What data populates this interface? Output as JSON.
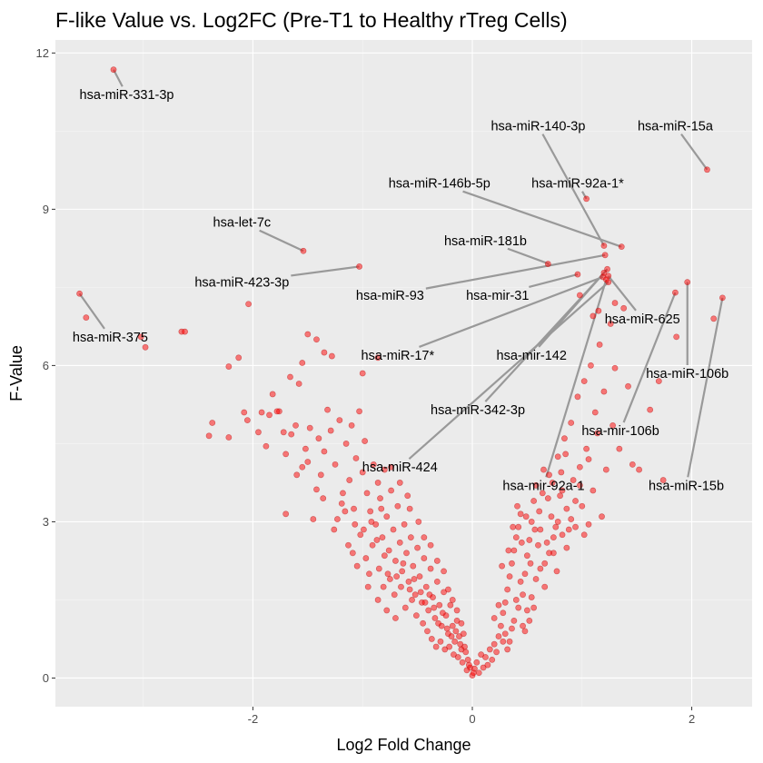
{
  "chart_data": {
    "type": "scatter",
    "title": "F-like Value vs. Log2FC (Pre-T1 to Healthy rTreg Cells)",
    "xlabel": "Log2 Fold Change",
    "ylabel": "F-Value",
    "xlim": [
      -3.8,
      2.55
    ],
    "ylim": [
      -0.55,
      12.25
    ],
    "x_ticks": [
      -2,
      0,
      2
    ],
    "y_ticks": [
      0,
      3,
      6,
      9,
      12
    ],
    "grid": true,
    "point_color": "#ff0000",
    "label_line_color": "#999999",
    "panel_color": "#ebebeb",
    "labeled_points": [
      {
        "label": "hsa-miR-331-3p",
        "x": -3.27,
        "y": 11.68,
        "label_x": -3.15,
        "label_y": 11.2
      },
      {
        "label": "hsa-miR-140-3p",
        "x": 1.2,
        "y": 8.3,
        "label_x": 0.6,
        "label_y": 10.6
      },
      {
        "label": "hsa-miR-15a",
        "x": 2.14,
        "y": 9.76,
        "label_x": 1.85,
        "label_y": 10.6
      },
      {
        "label": "hsa-miR-146b-5p",
        "x": 1.36,
        "y": 8.28,
        "label_x": -0.3,
        "label_y": 9.5
      },
      {
        "label": "hsa-miR-92a-1*",
        "x": 1.04,
        "y": 9.2,
        "label_x": 0.96,
        "label_y": 9.5
      },
      {
        "label": "hsa-let-7c",
        "x": -1.54,
        "y": 8.2,
        "label_x": -2.1,
        "label_y": 8.75
      },
      {
        "label": "hsa-miR-181b",
        "x": 0.7,
        "y": 7.95,
        "label_x": 0.12,
        "label_y": 8.4
      },
      {
        "label": "hsa-miR-423-3p",
        "x": -1.03,
        "y": 7.9,
        "label_x": -2.1,
        "label_y": 7.6
      },
      {
        "label": "hsa-miR-375",
        "x": -3.58,
        "y": 7.38,
        "label_x": -3.3,
        "label_y": 6.55
      },
      {
        "label": "hsa-miR-93",
        "x": 1.21,
        "y": 8.12,
        "label_x": -0.75,
        "label_y": 7.35
      },
      {
        "label": "hsa-mir-31",
        "x": 0.96,
        "y": 7.75,
        "label_x": 0.23,
        "label_y": 7.35
      },
      {
        "label": "hsa-miR-625",
        "x": 1.24,
        "y": 7.72,
        "label_x": 1.55,
        "label_y": 6.9
      },
      {
        "label": "hsa-miR-17*",
        "x": 1.19,
        "y": 7.7,
        "label_x": -0.68,
        "label_y": 6.2
      },
      {
        "label": "hsa-mir-142",
        "x": 1.23,
        "y": 7.85,
        "label_x": 0.54,
        "label_y": 6.2
      },
      {
        "label": "hsa-miR-106b",
        "x": 1.96,
        "y": 7.6,
        "label_x": 1.96,
        "label_y": 5.85
      },
      {
        "label": "hsa-miR-342-3p",
        "x": 1.2,
        "y": 7.78,
        "label_x": 0.05,
        "label_y": 5.15
      },
      {
        "label": "hsa-mir-106b",
        "x": 1.85,
        "y": 7.4,
        "label_x": 1.35,
        "label_y": 4.75
      },
      {
        "label": "hsa-miR-424",
        "x": 1.24,
        "y": 7.6,
        "label_x": -0.66,
        "label_y": 4.05
      },
      {
        "label": "hsa-mir-92a-1",
        "x": 1.22,
        "y": 7.65,
        "label_x": 0.65,
        "label_y": 3.7
      },
      {
        "label": "hsa-miR-15b",
        "x": 2.28,
        "y": 7.3,
        "label_x": 1.95,
        "label_y": 3.7
      }
    ],
    "points": [
      [
        -3.58,
        7.38
      ],
      [
        -3.52,
        6.92
      ],
      [
        -3.27,
        11.68
      ],
      [
        -3.02,
        6.55
      ],
      [
        -2.98,
        6.35
      ],
      [
        -2.65,
        6.65
      ],
      [
        -2.62,
        6.65
      ],
      [
        -2.22,
        5.98
      ],
      [
        -2.13,
        6.15
      ],
      [
        -2.04,
        7.18
      ],
      [
        -1.92,
        5.1
      ],
      [
        -1.85,
        5.05
      ],
      [
        -1.76,
        5.12
      ],
      [
        -1.66,
        5.78
      ],
      [
        -1.55,
        6.05
      ],
      [
        -1.54,
        8.2
      ],
      [
        -1.5,
        6.6
      ],
      [
        -1.42,
        6.5
      ],
      [
        -1.35,
        6.25
      ],
      [
        -1.28,
        6.18
      ],
      [
        -1.03,
        7.9
      ],
      [
        -1.0,
        5.85
      ],
      [
        -0.86,
        6.15
      ],
      [
        -2.4,
        4.65
      ],
      [
        -2.37,
        4.9
      ],
      [
        -2.22,
        4.62
      ],
      [
        -2.08,
        5.1
      ],
      [
        -2.05,
        4.95
      ],
      [
        -1.95,
        4.72
      ],
      [
        -1.88,
        4.45
      ],
      [
        -1.82,
        5.45
      ],
      [
        -1.78,
        5.12
      ],
      [
        -1.72,
        4.72
      ],
      [
        -1.7,
        4.3
      ],
      [
        -1.65,
        4.68
      ],
      [
        -1.61,
        4.85
      ],
      [
        -1.58,
        5.65
      ],
      [
        -1.55,
        4.05
      ],
      [
        -1.52,
        4.4
      ],
      [
        -1.5,
        4.15
      ],
      [
        -1.48,
        4.8
      ],
      [
        -1.42,
        3.62
      ],
      [
        -1.4,
        4.6
      ],
      [
        -1.38,
        3.9
      ],
      [
        -1.35,
        4.35
      ],
      [
        -1.32,
        5.15
      ],
      [
        -1.29,
        4.75
      ],
      [
        -1.25,
        4.1
      ],
      [
        -1.21,
        4.95
      ],
      [
        -1.19,
        3.35
      ],
      [
        -1.15,
        4.5
      ],
      [
        -1.12,
        3.8
      ],
      [
        -1.1,
        4.85
      ],
      [
        -1.08,
        3.25
      ],
      [
        -1.06,
        4.22
      ],
      [
        -1.03,
        5.12
      ],
      [
        -1.0,
        3.95
      ],
      [
        -0.98,
        4.55
      ],
      [
        -0.96,
        3.55
      ],
      [
        -0.93,
        3.2
      ],
      [
        -0.9,
        4.1
      ],
      [
        -0.88,
        2.95
      ],
      [
        -0.86,
        3.75
      ],
      [
        -0.84,
        3.45
      ],
      [
        -0.82,
        2.7
      ],
      [
        -0.8,
        4.0
      ],
      [
        -0.78,
        3.1
      ],
      [
        -0.76,
        2.45
      ],
      [
        -0.74,
        3.6
      ],
      [
        -0.72,
        2.85
      ],
      [
        -0.7,
        2.25
      ],
      [
        -0.68,
        3.3
      ],
      [
        -0.66,
        2.6
      ],
      [
        -0.64,
        2.05
      ],
      [
        -0.62,
        2.95
      ],
      [
        -0.6,
        2.4
      ],
      [
        -0.58,
        1.85
      ],
      [
        -0.56,
        2.7
      ],
      [
        -0.54,
        2.15
      ],
      [
        -0.52,
        1.6
      ],
      [
        -0.5,
        2.5
      ],
      [
        -0.48,
        1.95
      ],
      [
        -0.46,
        1.45
      ],
      [
        -0.44,
        2.3
      ],
      [
        -0.42,
        1.75
      ],
      [
        -0.4,
        1.3
      ],
      [
        -0.38,
        2.1
      ],
      [
        -0.36,
        1.55
      ],
      [
        -0.34,
        1.15
      ],
      [
        -0.32,
        1.85
      ],
      [
        -0.3,
        1.4
      ],
      [
        -0.28,
        1.0
      ],
      [
        -0.26,
        1.65
      ],
      [
        -0.24,
        1.2
      ],
      [
        -0.22,
        0.85
      ],
      [
        -0.2,
        1.4
      ],
      [
        -0.18,
        1.0
      ],
      [
        -0.16,
        0.7
      ],
      [
        -0.14,
        1.1
      ],
      [
        -0.12,
        0.8
      ],
      [
        -0.1,
        0.55
      ],
      [
        -0.08,
        0.85
      ],
      [
        -0.06,
        0.5
      ],
      [
        -0.04,
        0.35
      ],
      [
        -0.02,
        0.2
      ],
      [
        0.0,
        0.05
      ],
      [
        0.02,
        0.18
      ],
      [
        0.04,
        0.3
      ],
      [
        0.06,
        0.1
      ],
      [
        0.08,
        0.45
      ],
      [
        -1.6,
        3.9
      ],
      [
        -1.45,
        3.05
      ],
      [
        -1.26,
        2.85
      ],
      [
        -1.18,
        3.55
      ],
      [
        -1.13,
        2.55
      ],
      [
        -1.07,
        2.95
      ],
      [
        -1.02,
        2.75
      ],
      [
        -0.97,
        2.3
      ],
      [
        -0.91,
        2.55
      ],
      [
        -0.85,
        2.1
      ],
      [
        -0.8,
        2.35
      ],
      [
        -0.75,
        1.9
      ],
      [
        -0.71,
        1.6
      ],
      [
        -0.65,
        1.75
      ],
      [
        -0.61,
        1.35
      ],
      [
        -0.55,
        1.5
      ],
      [
        -0.51,
        1.2
      ],
      [
        -0.45,
        1.05
      ],
      [
        -0.41,
        0.9
      ],
      [
        -0.37,
        0.75
      ],
      [
        -0.33,
        0.6
      ],
      [
        -0.29,
        0.7
      ],
      [
        -0.25,
        0.55
      ],
      [
        -0.21,
        0.6
      ],
      [
        -0.17,
        0.45
      ],
      [
        -0.13,
        0.4
      ],
      [
        -0.09,
        0.3
      ],
      [
        -0.05,
        0.15
      ],
      [
        -0.03,
        0.25
      ],
      [
        0.01,
        0.1
      ],
      [
        -1.7,
        3.15
      ],
      [
        -1.36,
        3.45
      ],
      [
        -1.23,
        3.05
      ],
      [
        -1.16,
        3.2
      ],
      [
        -1.09,
        2.4
      ],
      [
        -0.99,
        2.85
      ],
      [
        -0.94,
        2.0
      ],
      [
        -0.87,
        2.65
      ],
      [
        -0.81,
        1.75
      ],
      [
        -0.77,
        2.0
      ],
      [
        -0.69,
        1.95
      ],
      [
        -0.63,
        2.2
      ],
      [
        -0.57,
        1.7
      ],
      [
        -0.53,
        1.9
      ],
      [
        -0.47,
        1.65
      ],
      [
        -0.43,
        1.45
      ],
      [
        -0.39,
        1.6
      ],
      [
        -0.35,
        1.35
      ],
      [
        -0.31,
        1.05
      ],
      [
        -0.27,
        1.25
      ],
      [
        -0.23,
        0.95
      ],
      [
        -0.19,
        0.8
      ],
      [
        -0.15,
        0.9
      ],
      [
        -0.11,
        0.65
      ],
      [
        -0.07,
        0.6
      ],
      [
        -0.57,
        3.25
      ],
      [
        -0.49,
        3.0
      ],
      [
        -0.44,
        2.7
      ],
      [
        -0.38,
        2.55
      ],
      [
        -0.32,
        2.25
      ],
      [
        -0.26,
        2.05
      ],
      [
        -0.22,
        1.7
      ],
      [
        -0.18,
        1.5
      ],
      [
        -0.14,
        1.3
      ],
      [
        -0.1,
        1.05
      ],
      [
        -0.74,
        4.05
      ],
      [
        -0.66,
        3.75
      ],
      [
        -0.59,
        3.5
      ],
      [
        -0.83,
        3.25
      ],
      [
        -0.92,
        3.0
      ],
      [
        -1.05,
        2.15
      ],
      [
        -0.95,
        1.75
      ],
      [
        -0.86,
        1.5
      ],
      [
        -0.78,
        1.3
      ],
      [
        -0.7,
        1.15
      ],
      [
        0.1,
        0.2
      ],
      [
        0.12,
        0.4
      ],
      [
        0.14,
        0.25
      ],
      [
        0.16,
        0.55
      ],
      [
        0.18,
        0.35
      ],
      [
        0.2,
        0.65
      ],
      [
        0.22,
        0.5
      ],
      [
        0.24,
        0.8
      ],
      [
        0.26,
        1.0
      ],
      [
        0.28,
        1.25
      ],
      [
        0.3,
        1.45
      ],
      [
        0.32,
        1.7
      ],
      [
        0.34,
        1.95
      ],
      [
        0.36,
        2.2
      ],
      [
        0.38,
        2.45
      ],
      [
        0.4,
        2.7
      ],
      [
        0.42,
        2.9
      ],
      [
        0.44,
        3.15
      ],
      [
        0.46,
        1.6
      ],
      [
        0.48,
        2.0
      ],
      [
        0.5,
        2.35
      ],
      [
        0.52,
        2.65
      ],
      [
        0.54,
        3.0
      ],
      [
        0.56,
        3.4
      ],
      [
        0.58,
        3.7
      ],
      [
        0.6,
        2.55
      ],
      [
        0.62,
        2.85
      ],
      [
        0.64,
        3.55
      ],
      [
        0.66,
        2.2
      ],
      [
        0.68,
        2.6
      ],
      [
        0.7,
        3.9
      ],
      [
        0.72,
        3.1
      ],
      [
        0.74,
        2.4
      ],
      [
        0.76,
        2.9
      ],
      [
        0.78,
        4.25
      ],
      [
        0.8,
        3.5
      ],
      [
        0.82,
        2.75
      ],
      [
        0.84,
        4.6
      ],
      [
        0.86,
        3.25
      ],
      [
        0.88,
        2.85
      ],
      [
        0.9,
        4.9
      ],
      [
        0.92,
        3.8
      ],
      [
        0.94,
        2.9
      ],
      [
        0.96,
        5.4
      ],
      [
        0.98,
        4.05
      ],
      [
        1.0,
        3.3
      ],
      [
        1.02,
        5.7
      ],
      [
        1.04,
        4.4
      ],
      [
        1.06,
        2.95
      ],
      [
        1.08,
        6.0
      ],
      [
        1.1,
        3.6
      ],
      [
        1.12,
        5.1
      ],
      [
        1.14,
        4.7
      ],
      [
        1.16,
        6.4
      ],
      [
        1.18,
        3.1
      ],
      [
        1.2,
        5.5
      ],
      [
        1.22,
        4.0
      ],
      [
        1.26,
        6.8
      ],
      [
        1.28,
        4.85
      ],
      [
        1.3,
        5.95
      ],
      [
        1.34,
        4.4
      ],
      [
        1.38,
        7.1
      ],
      [
        1.42,
        5.6
      ],
      [
        1.46,
        4.1
      ],
      [
        1.52,
        4.0
      ],
      [
        1.62,
        5.15
      ],
      [
        1.7,
        5.7
      ],
      [
        1.74,
        3.8
      ],
      [
        1.86,
        6.55
      ],
      [
        2.2,
        6.9
      ],
      [
        0.3,
        0.85
      ],
      [
        0.34,
        0.7
      ],
      [
        0.38,
        1.1
      ],
      [
        0.42,
        1.35
      ],
      [
        0.46,
        1.0
      ],
      [
        0.5,
        1.3
      ],
      [
        0.54,
        1.55
      ],
      [
        0.58,
        1.9
      ],
      [
        0.62,
        2.1
      ],
      [
        0.66,
        1.75
      ],
      [
        0.7,
        2.4
      ],
      [
        0.74,
        2.7
      ],
      [
        0.78,
        3.0
      ],
      [
        0.82,
        3.6
      ],
      [
        0.86,
        2.5
      ],
      [
        0.9,
        3.05
      ],
      [
        0.94,
        3.4
      ],
      [
        0.98,
        3.7
      ],
      [
        1.02,
        2.75
      ],
      [
        1.06,
        4.2
      ],
      [
        0.27,
        2.15
      ],
      [
        0.33,
        2.45
      ],
      [
        0.37,
        2.9
      ],
      [
        0.41,
        3.3
      ],
      [
        0.45,
        2.6
      ],
      [
        0.49,
        3.1
      ],
      [
        0.53,
        2.2
      ],
      [
        0.57,
        2.85
      ],
      [
        0.61,
        3.2
      ],
      [
        0.65,
        4.0
      ],
      [
        0.69,
        3.45
      ],
      [
        0.73,
        3.75
      ],
      [
        0.77,
        2.05
      ],
      [
        0.81,
        3.95
      ],
      [
        0.85,
        4.3
      ],
      [
        0.2,
        1.15
      ],
      [
        0.24,
        1.4
      ],
      [
        0.28,
        0.7
      ],
      [
        0.32,
        0.55
      ],
      [
        0.36,
        0.95
      ],
      [
        0.4,
        1.5
      ],
      [
        0.44,
        1.85
      ],
      [
        0.48,
        0.9
      ],
      [
        0.52,
        1.1
      ],
      [
        0.56,
        1.35
      ],
      [
        0.69,
        7.95
      ],
      [
        1.04,
        9.2
      ],
      [
        1.2,
        8.3
      ],
      [
        1.36,
        8.28
      ],
      [
        2.14,
        9.76
      ],
      [
        1.21,
        8.12
      ],
      [
        0.96,
        7.75
      ],
      [
        1.24,
        7.72
      ],
      [
        1.19,
        7.7
      ],
      [
        1.23,
        7.85
      ],
      [
        1.96,
        7.6
      ],
      [
        1.2,
        7.78
      ],
      [
        1.85,
        7.4
      ],
      [
        1.24,
        7.6
      ],
      [
        1.22,
        7.65
      ],
      [
        2.28,
        7.3
      ],
      [
        1.3,
        7.2
      ],
      [
        1.1,
        6.95
      ],
      [
        0.98,
        7.35
      ],
      [
        1.15,
        7.05
      ]
    ]
  }
}
